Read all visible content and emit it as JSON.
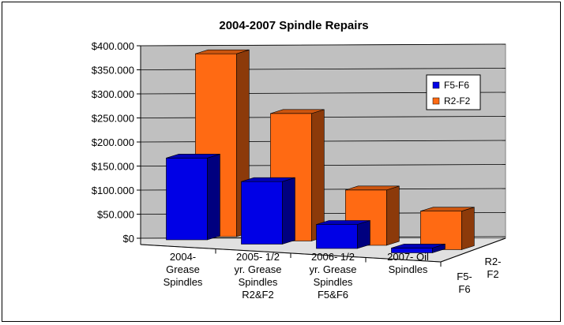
{
  "chart_data": {
    "type": "bar",
    "title": "2004-2007 Spindle Repairs",
    "categories": [
      [
        "2004-",
        "Grease",
        "Spindles"
      ],
      [
        "2005- 1/2",
        "yr. Grease",
        "Spindles",
        "R2&F2"
      ],
      [
        "2006- 1/2",
        "yr. Grease",
        "Spindles",
        "F5&F6"
      ],
      [
        "2007- Oil",
        "Spindles"
      ]
    ],
    "series": [
      {
        "name": "F5-F6",
        "values": [
          170,
          130,
          50,
          10
        ],
        "color": "#0000e6",
        "depth_label": [
          "F5-",
          "F6"
        ]
      },
      {
        "name": "R2-F2",
        "values": [
          380,
          265,
          115,
          80
        ],
        "color": "#ff6a13",
        "depth_label": [
          "R2-",
          "F2"
        ]
      }
    ],
    "y_ticks": [
      "$0",
      "$50.000",
      "$100.000",
      "$150.000",
      "$200.000",
      "$250.000",
      "$300.000",
      "$350.000",
      "$400.000"
    ],
    "ylim": [
      0,
      400
    ],
    "grid": true,
    "legend_position": "right",
    "wall_color": "#c0c0c0"
  }
}
